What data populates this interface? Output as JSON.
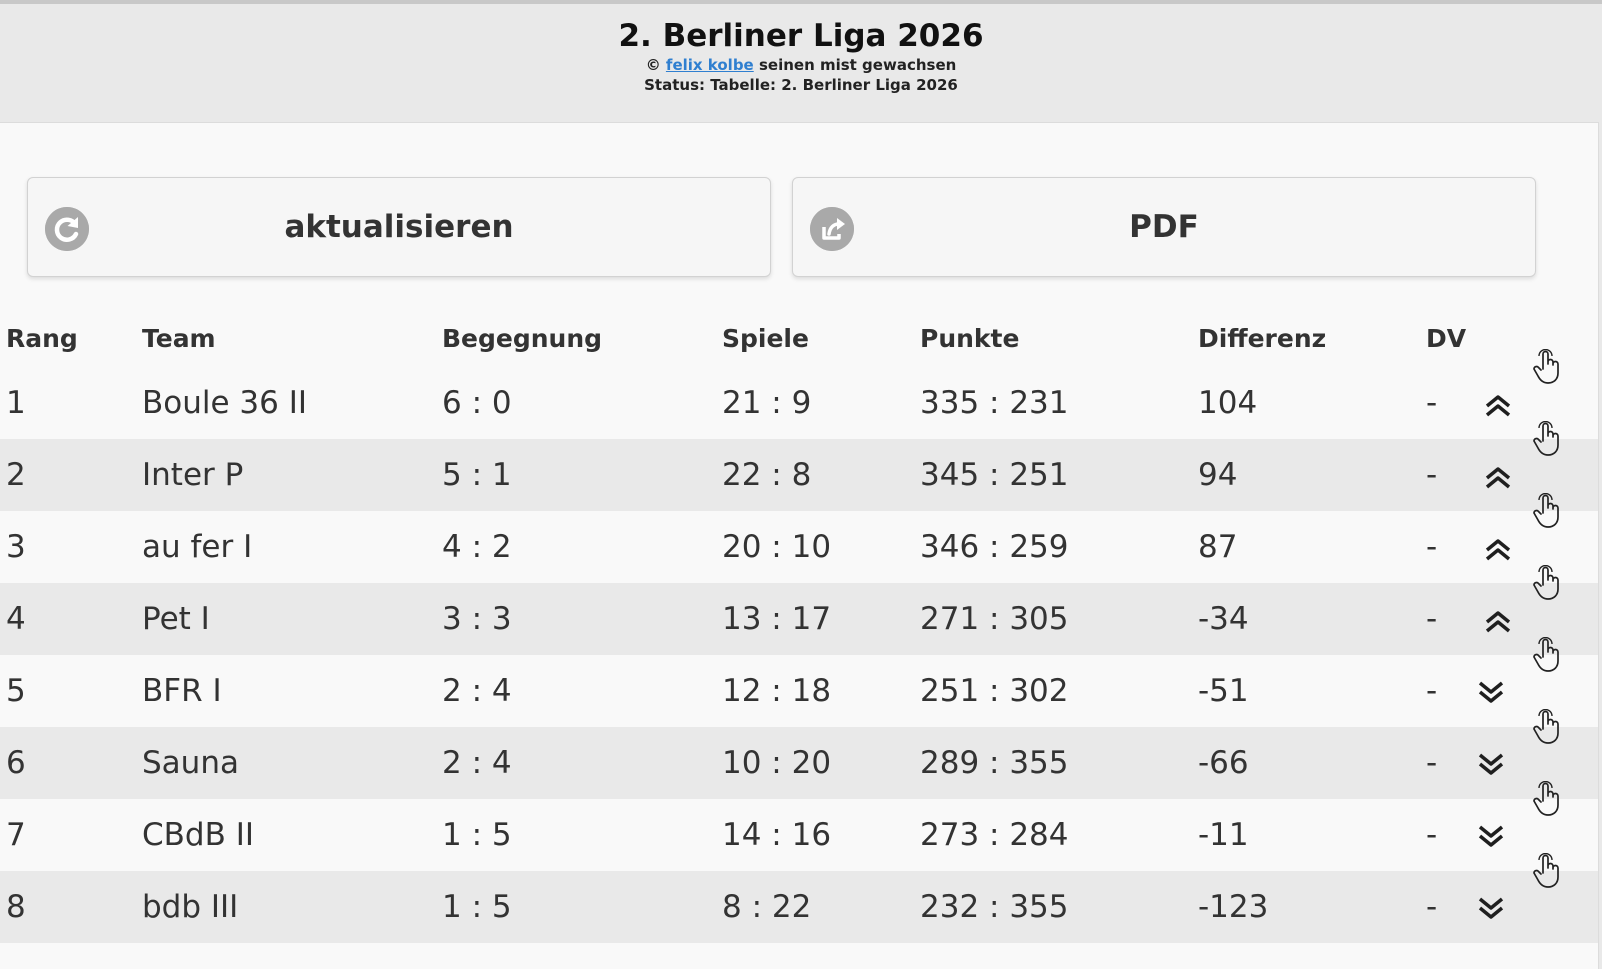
{
  "header": {
    "title": "2. Berliner Liga 2026",
    "copyright_symbol": "©",
    "author_link": "felix kolbe",
    "copyright_suffix": "seinen mist gewachsen",
    "status": "Status: Tabelle: 2. Berliner Liga 2026"
  },
  "buttons": {
    "refresh_label": "aktualisieren",
    "refresh_icon": "refresh-icon",
    "pdf_label": "PDF",
    "pdf_icon": "share-icon"
  },
  "table": {
    "headers": {
      "rang": "Rang",
      "team": "Team",
      "begegnung": "Begegnung",
      "spiele": "Spiele",
      "punkte": "Punkte",
      "differenz": "Differenz",
      "dv": "DV"
    },
    "rows": [
      {
        "rang": "1",
        "team": "Boule 36 II",
        "begegnung": "6 : 0",
        "spiele": "21 : 9",
        "punkte": "335 : 231",
        "differenz": "104",
        "dv": "-",
        "trend": "up"
      },
      {
        "rang": "2",
        "team": "Inter P",
        "begegnung": "5 : 1",
        "spiele": "22 : 8",
        "punkte": "345 : 251",
        "differenz": "94",
        "dv": "-",
        "trend": "up"
      },
      {
        "rang": "3",
        "team": "au fer I",
        "begegnung": "4 : 2",
        "spiele": "20 : 10",
        "punkte": "346 : 259",
        "differenz": "87",
        "dv": "-",
        "trend": "up"
      },
      {
        "rang": "4",
        "team": "Pet I",
        "begegnung": "3 : 3",
        "spiele": "13 : 17",
        "punkte": "271 : 305",
        "differenz": "-34",
        "dv": "-",
        "trend": "up"
      },
      {
        "rang": "5",
        "team": "BFR I",
        "begegnung": "2 : 4",
        "spiele": "12 : 18",
        "punkte": "251 : 302",
        "differenz": "-51",
        "dv": "-",
        "trend": "down"
      },
      {
        "rang": "6",
        "team": "Sauna",
        "begegnung": "2 : 4",
        "spiele": "10 : 20",
        "punkte": "289 : 355",
        "differenz": "-66",
        "dv": "-",
        "trend": "down"
      },
      {
        "rang": "7",
        "team": "CBdB II",
        "begegnung": "1 : 5",
        "spiele": "14 : 16",
        "punkte": "273 : 284",
        "differenz": "-11",
        "dv": "-",
        "trend": "down"
      },
      {
        "rang": "8",
        "team": "bdb III",
        "begegnung": "1 : 5",
        "spiele": "8 : 22",
        "punkte": "232 : 355",
        "differenz": "-123",
        "dv": "-",
        "trend": "down"
      }
    ]
  },
  "colors": {
    "link": "#2f7fd0",
    "row_alt": "#e9e9e9",
    "background": "#f9f9f9",
    "icon_gray": "#a9a9a9"
  }
}
